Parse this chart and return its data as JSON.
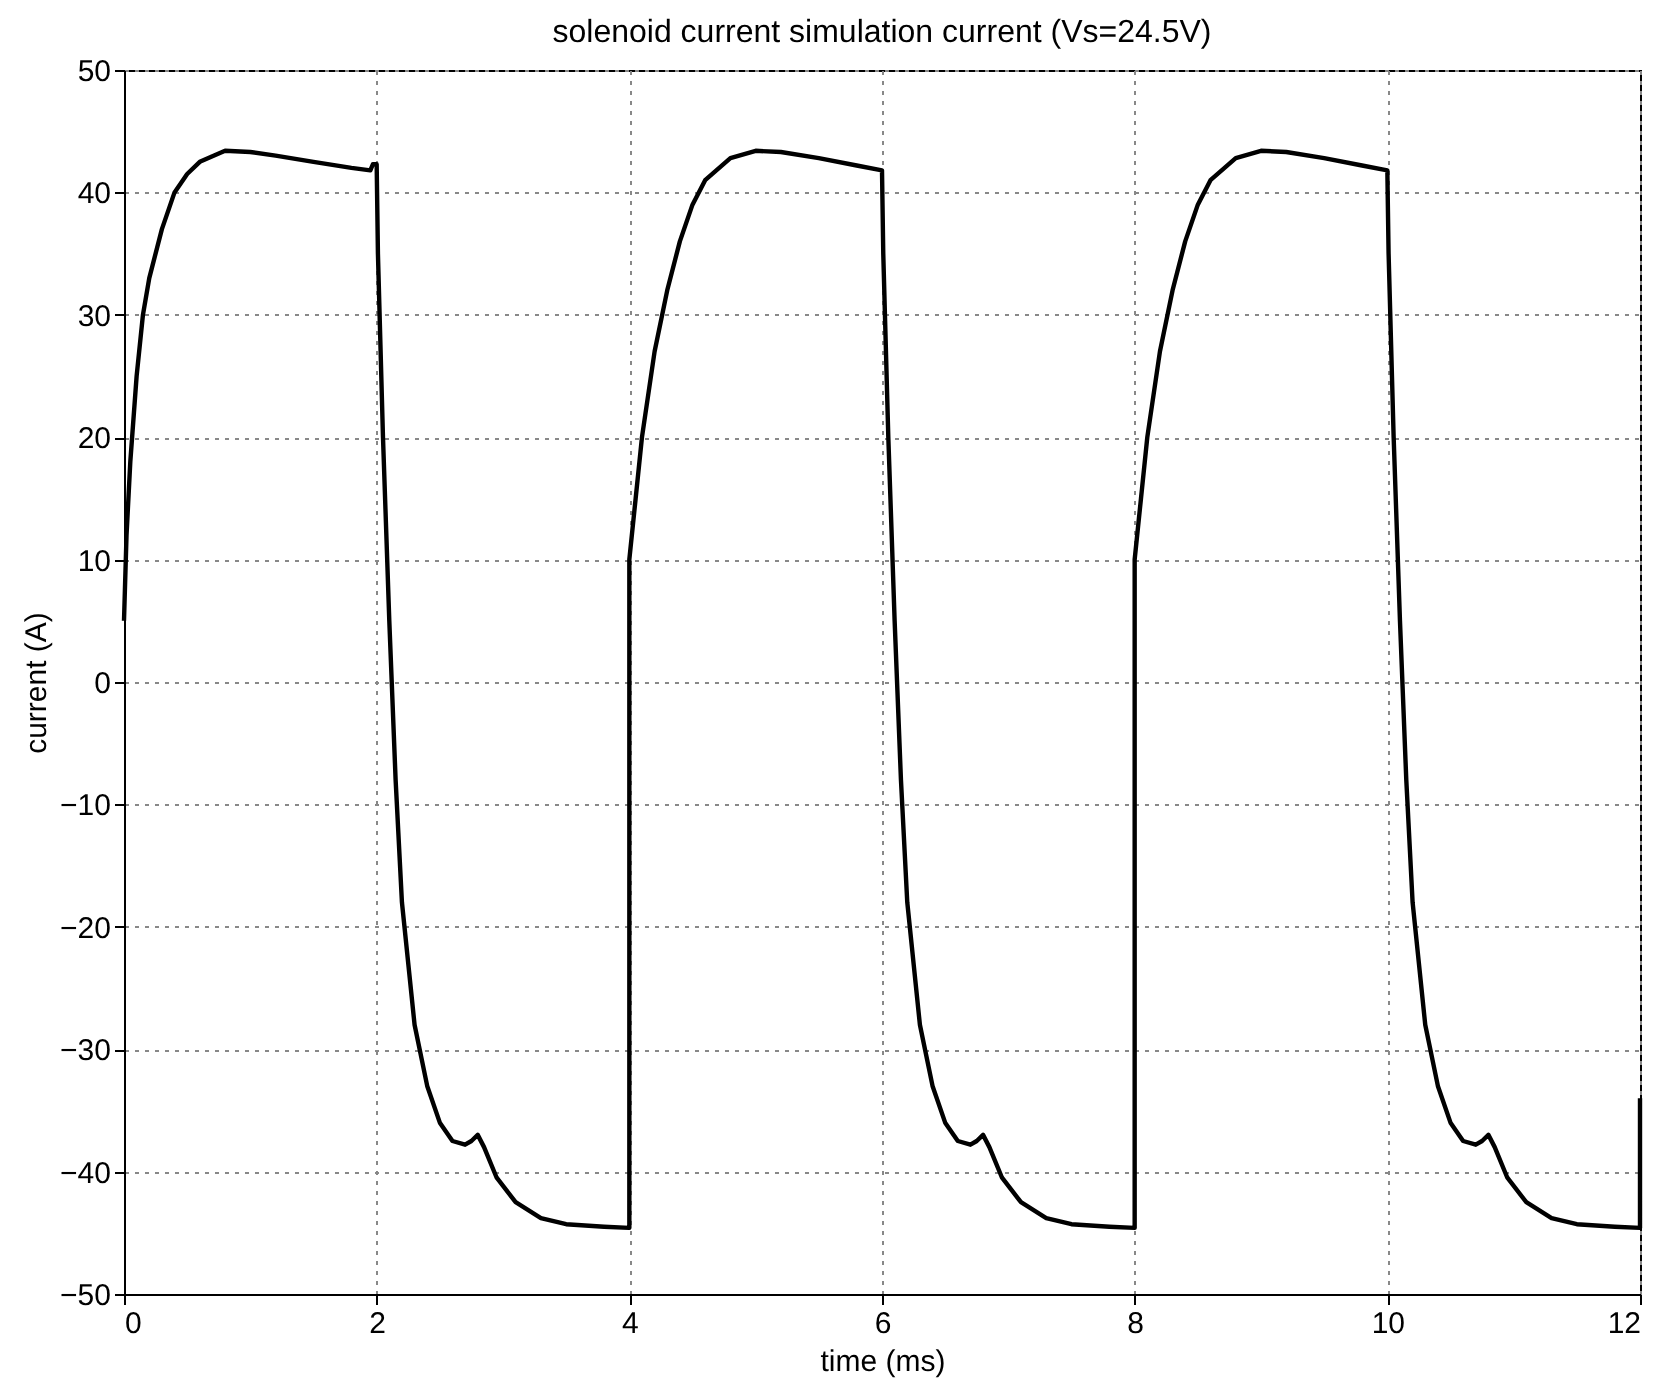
{
  "chart_data": {
    "type": "line",
    "title": "solenoid current simulation current (Vs=24.5V)",
    "xlabel": "time (ms)",
    "ylabel": "current (A)",
    "series": [
      {
        "color": "#000000",
        "x": [
          0,
          0.02,
          0.05,
          0.1,
          0.15,
          0.2,
          0.3,
          0.4,
          0.5,
          0.6,
          0.8,
          1.0,
          1.2,
          1.5,
          1.8,
          1.95,
          1.97,
          2.0,
          2.01,
          2.05,
          2.1,
          2.15,
          2.2,
          2.3,
          2.4,
          2.5,
          2.6,
          2.7,
          2.75,
          2.8,
          2.85,
          2.95,
          3.1,
          3.3,
          3.5,
          3.8,
          4.0,
          4,
          4.05,
          4.1,
          4.2,
          4.3,
          4.4,
          4.5,
          4.6,
          4.8,
          5.0,
          5.2,
          5.5,
          5.8,
          6.0,
          6.01,
          6.05,
          6.1,
          6.15,
          6.2,
          6.3,
          6.4,
          6.5,
          6.6,
          6.7,
          6.75,
          6.8,
          6.85,
          6.95,
          7.1,
          7.3,
          7.5,
          7.8,
          8.0,
          8,
          8.05,
          8.1,
          8.2,
          8.3,
          8.4,
          8.5,
          8.6,
          8.8,
          9.0,
          9.2,
          9.5,
          9.8,
          10.0,
          10.01,
          10.05,
          10.1,
          10.15,
          10.2,
          10.3,
          10.4,
          10.5,
          10.6,
          10.7,
          10.75,
          10.8,
          10.85,
          10.95,
          11.1,
          11.3,
          11.5,
          11.8,
          12.0,
          12
        ],
        "values": [
          5,
          12,
          18,
          25,
          30,
          33,
          37,
          40,
          41.5,
          42.5,
          43.4,
          43.3,
          43,
          42.5,
          42,
          41.8,
          42.3,
          42.3,
          35,
          20,
          5,
          -8,
          -18,
          -28,
          -33,
          -36,
          -37.5,
          -37.8,
          -37.5,
          -37,
          -38,
          -40.5,
          -42.5,
          -43.8,
          -44.3,
          -44.5,
          -44.6,
          10,
          15,
          20,
          27,
          32,
          36,
          39,
          41,
          42.8,
          43.4,
          43.3,
          42.8,
          42.2,
          41.8,
          35,
          20,
          5,
          -8,
          -18,
          -28,
          -33,
          -36,
          -37.5,
          -37.8,
          -37.5,
          -37,
          -38,
          -40.5,
          -42.5,
          -43.8,
          -44.3,
          -44.5,
          -44.6,
          10,
          15,
          20,
          27,
          32,
          36,
          39,
          41,
          42.8,
          43.4,
          43.3,
          42.8,
          42.2,
          41.8,
          35,
          20,
          5,
          -8,
          -18,
          -28,
          -33,
          -36,
          -37.5,
          -37.8,
          -37.5,
          -37,
          -38,
          -40.5,
          -42.5,
          -43.8,
          -44.3,
          -44.5,
          -44.6,
          -34
        ]
      }
    ],
    "xlim": [
      0,
      12
    ],
    "xticks": [
      0,
      2,
      4,
      6,
      8,
      10,
      12
    ],
    "ylim": [
      -50,
      50
    ],
    "yticks": [
      -50,
      -40,
      -30,
      -20,
      -10,
      0,
      10,
      20,
      30,
      40,
      50
    ],
    "grid": true,
    "line_style": "solid",
    "marker": "none"
  }
}
